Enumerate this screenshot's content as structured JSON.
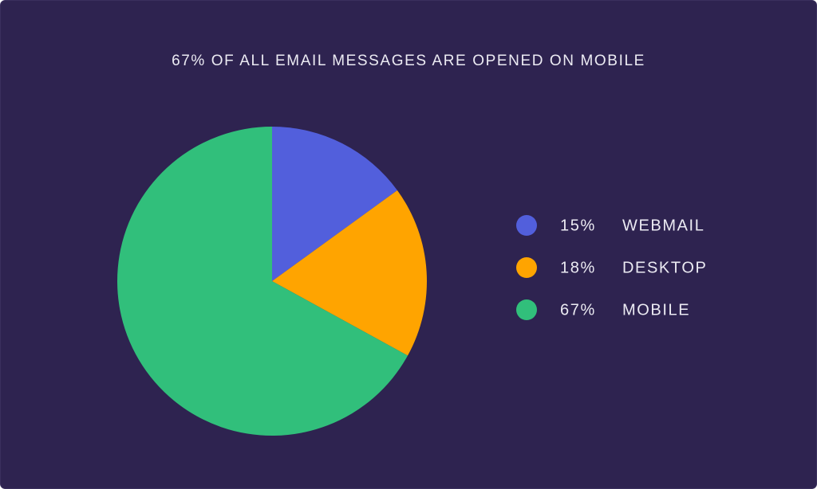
{
  "chart_data": {
    "type": "pie",
    "title": "67% OF ALL EMAIL MESSAGES ARE OPENED ON MOBILE",
    "categories": [
      "WEBMAIL",
      "DESKTOP",
      "MOBILE"
    ],
    "values": [
      15,
      18,
      67
    ],
    "value_labels": [
      "15%",
      "18%",
      "67%"
    ],
    "colors": [
      "#525fdc",
      "#ffa400",
      "#31bf7b"
    ],
    "legend": "right"
  }
}
